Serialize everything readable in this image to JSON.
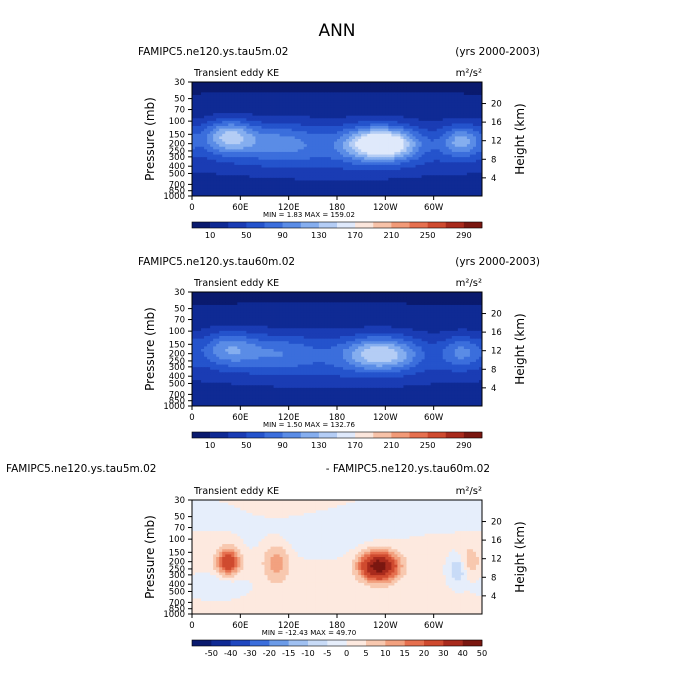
{
  "figure_title": "ANN",
  "colors": {
    "ke_palette": [
      "#0a1a6e",
      "#0f2a94",
      "#1a3cb4",
      "#2453cc",
      "#3b6edc",
      "#5a8ce6",
      "#85aeef",
      "#b4cdf5",
      "#dfe9fb",
      "#fbe6dc",
      "#f7c2a8",
      "#f29a78",
      "#e6704f",
      "#cf4a2f",
      "#a82a1c",
      "#7a1710"
    ],
    "diff_palette": [
      "#0a1a6e",
      "#0f2a94",
      "#1f47c0",
      "#3b6edc",
      "#6b9be8",
      "#9fc0f1",
      "#c8dbf7",
      "#e6eefb",
      "#fde9df",
      "#f8c8af",
      "#f2a17f",
      "#e6704f",
      "#cf4a2f",
      "#a82a1c",
      "#7a1710"
    ]
  },
  "chart_data": [
    {
      "type": "heatmap",
      "name": "tau5m",
      "left_title": "FAMIPC5.ne120.ys.tau5m.02",
      "right_title": "(yrs 2000-2003)",
      "center_left": "Transient eddy KE",
      "units": "m²/s²",
      "ylabel": "Pressure (mb)",
      "ylabel_right": "Height (km)",
      "x_ticks": [
        "0",
        "60E",
        "120E",
        "180",
        "120W",
        "60W"
      ],
      "y_ticks": [
        "30",
        "50",
        "70",
        "100",
        "150",
        "200",
        "250",
        "300",
        "400",
        "500",
        "700",
        "850",
        "1000"
      ],
      "y_ticks_right": [
        "20",
        "16",
        "12",
        "8",
        "4"
      ],
      "stats": "MIN =    1.83   MAX =  159.02",
      "colorbar_labels": [
        "10",
        "50",
        "90",
        "130",
        "170",
        "210",
        "250",
        "290"
      ],
      "colorbar_levels": [
        0,
        10,
        30,
        50,
        70,
        90,
        110,
        130,
        150,
        170,
        190,
        210,
        230,
        250,
        270,
        290,
        310
      ],
      "min": 1.83,
      "max": 159.02,
      "base": 8,
      "blobs": [
        {
          "lon": 45,
          "p": 160,
          "amp": 95,
          "slon": 22,
          "sp": 0.36
        },
        {
          "lon": 105,
          "p": 190,
          "amp": 48,
          "slon": 35,
          "sp": 0.4
        },
        {
          "lon": 235,
          "p": 200,
          "amp": 151,
          "slon": 30,
          "sp": 0.35
        },
        {
          "lon": 335,
          "p": 185,
          "amp": 80,
          "slon": 18,
          "sp": 0.35
        },
        {
          "lon": 180,
          "p": 230,
          "amp": 30,
          "slon": 80,
          "sp": 0.6
        },
        {
          "lon": 0,
          "p": 250,
          "amp": 30,
          "slon": 360,
          "sp": 0.75
        }
      ]
    },
    {
      "type": "heatmap",
      "name": "tau60m",
      "left_title": "FAMIPC5.ne120.ys.tau60m.02",
      "right_title": "(yrs 2000-2003)",
      "center_left": "Transient eddy KE",
      "units": "m²/s²",
      "ylabel": "Pressure (mb)",
      "ylabel_right": "Height (km)",
      "x_ticks": [
        "0",
        "60E",
        "120E",
        "180",
        "120W",
        "60W"
      ],
      "y_ticks": [
        "30",
        "50",
        "70",
        "100",
        "150",
        "200",
        "250",
        "300",
        "400",
        "500",
        "700",
        "850",
        "1000"
      ],
      "y_ticks_right": [
        "20",
        "16",
        "12",
        "8",
        "4"
      ],
      "stats": "MIN =    1.50   MAX =  132.76",
      "colorbar_labels": [
        "10",
        "50",
        "90",
        "130",
        "170",
        "210",
        "250",
        "290"
      ],
      "colorbar_levels": [
        0,
        10,
        30,
        50,
        70,
        90,
        110,
        130,
        150,
        170,
        190,
        210,
        230,
        250,
        270,
        290,
        310
      ],
      "min": 1.5,
      "max": 132.76,
      "base": 8,
      "blobs": [
        {
          "lon": 45,
          "p": 170,
          "amp": 65,
          "slon": 24,
          "sp": 0.38
        },
        {
          "lon": 105,
          "p": 190,
          "amp": 40,
          "slon": 35,
          "sp": 0.4
        },
        {
          "lon": 235,
          "p": 200,
          "amp": 100,
          "slon": 32,
          "sp": 0.36
        },
        {
          "lon": 335,
          "p": 190,
          "amp": 58,
          "slon": 18,
          "sp": 0.35
        },
        {
          "lon": 180,
          "p": 230,
          "amp": 25,
          "slon": 80,
          "sp": 0.6
        },
        {
          "lon": 0,
          "p": 250,
          "amp": 28,
          "slon": 360,
          "sp": 0.75
        }
      ]
    },
    {
      "type": "heatmap",
      "name": "difference",
      "left_title": "FAMIPC5.ne120.ys.tau5m.02",
      "right_title": "- FAMIPC5.ne120.ys.tau60m.02",
      "center_left": "Transient eddy KE",
      "units": "m²/s²",
      "ylabel": "Pressure (mb)",
      "ylabel_right": "Height (km)",
      "x_ticks": [
        "0",
        "60E",
        "120E",
        "180",
        "120W",
        "60W"
      ],
      "y_ticks": [
        "30",
        "50",
        "70",
        "100",
        "150",
        "200",
        "250",
        "300",
        "400",
        "500",
        "700",
        "850",
        "1000"
      ],
      "y_ticks_right": [
        "20",
        "16",
        "12",
        "8",
        "4"
      ],
      "stats": "MIN =  -12.43   MAX =   49.70",
      "colorbar_labels": [
        "-50",
        "-40",
        "-30",
        "-20",
        "-15",
        "-10",
        "-5",
        "0",
        "5",
        "10",
        "15",
        "20",
        "30",
        "40",
        "50"
      ],
      "colorbar_levels": [
        -60,
        -50,
        -40,
        -30,
        -20,
        -15,
        -10,
        -5,
        0,
        5,
        10,
        15,
        20,
        30,
        40,
        50,
        60
      ],
      "min": -12.43,
      "max": 49.7,
      "base": 1,
      "blobs": [
        {
          "lon": 45,
          "p": 200,
          "amp": 26,
          "slon": 10,
          "sp": 0.3
        },
        {
          "lon": 105,
          "p": 200,
          "amp": 12,
          "slon": 12,
          "sp": 0.45
        },
        {
          "lon": 232,
          "p": 230,
          "amp": 46,
          "slon": 16,
          "sp": 0.3
        },
        {
          "lon": 345,
          "p": 200,
          "amp": 9,
          "slon": 8,
          "sp": 0.3
        },
        {
          "lon": 330,
          "p": 260,
          "amp": -11,
          "slon": 8,
          "sp": 0.3
        },
        {
          "lon": 30,
          "p": 420,
          "amp": -6,
          "slon": 25,
          "sp": 0.25
        },
        {
          "lon": 150,
          "p": 100,
          "amp": -4,
          "slon": 60,
          "sp": 0.4
        },
        {
          "lon": 300,
          "p": 45,
          "amp": -3,
          "slon": 80,
          "sp": 0.4
        }
      ]
    }
  ]
}
